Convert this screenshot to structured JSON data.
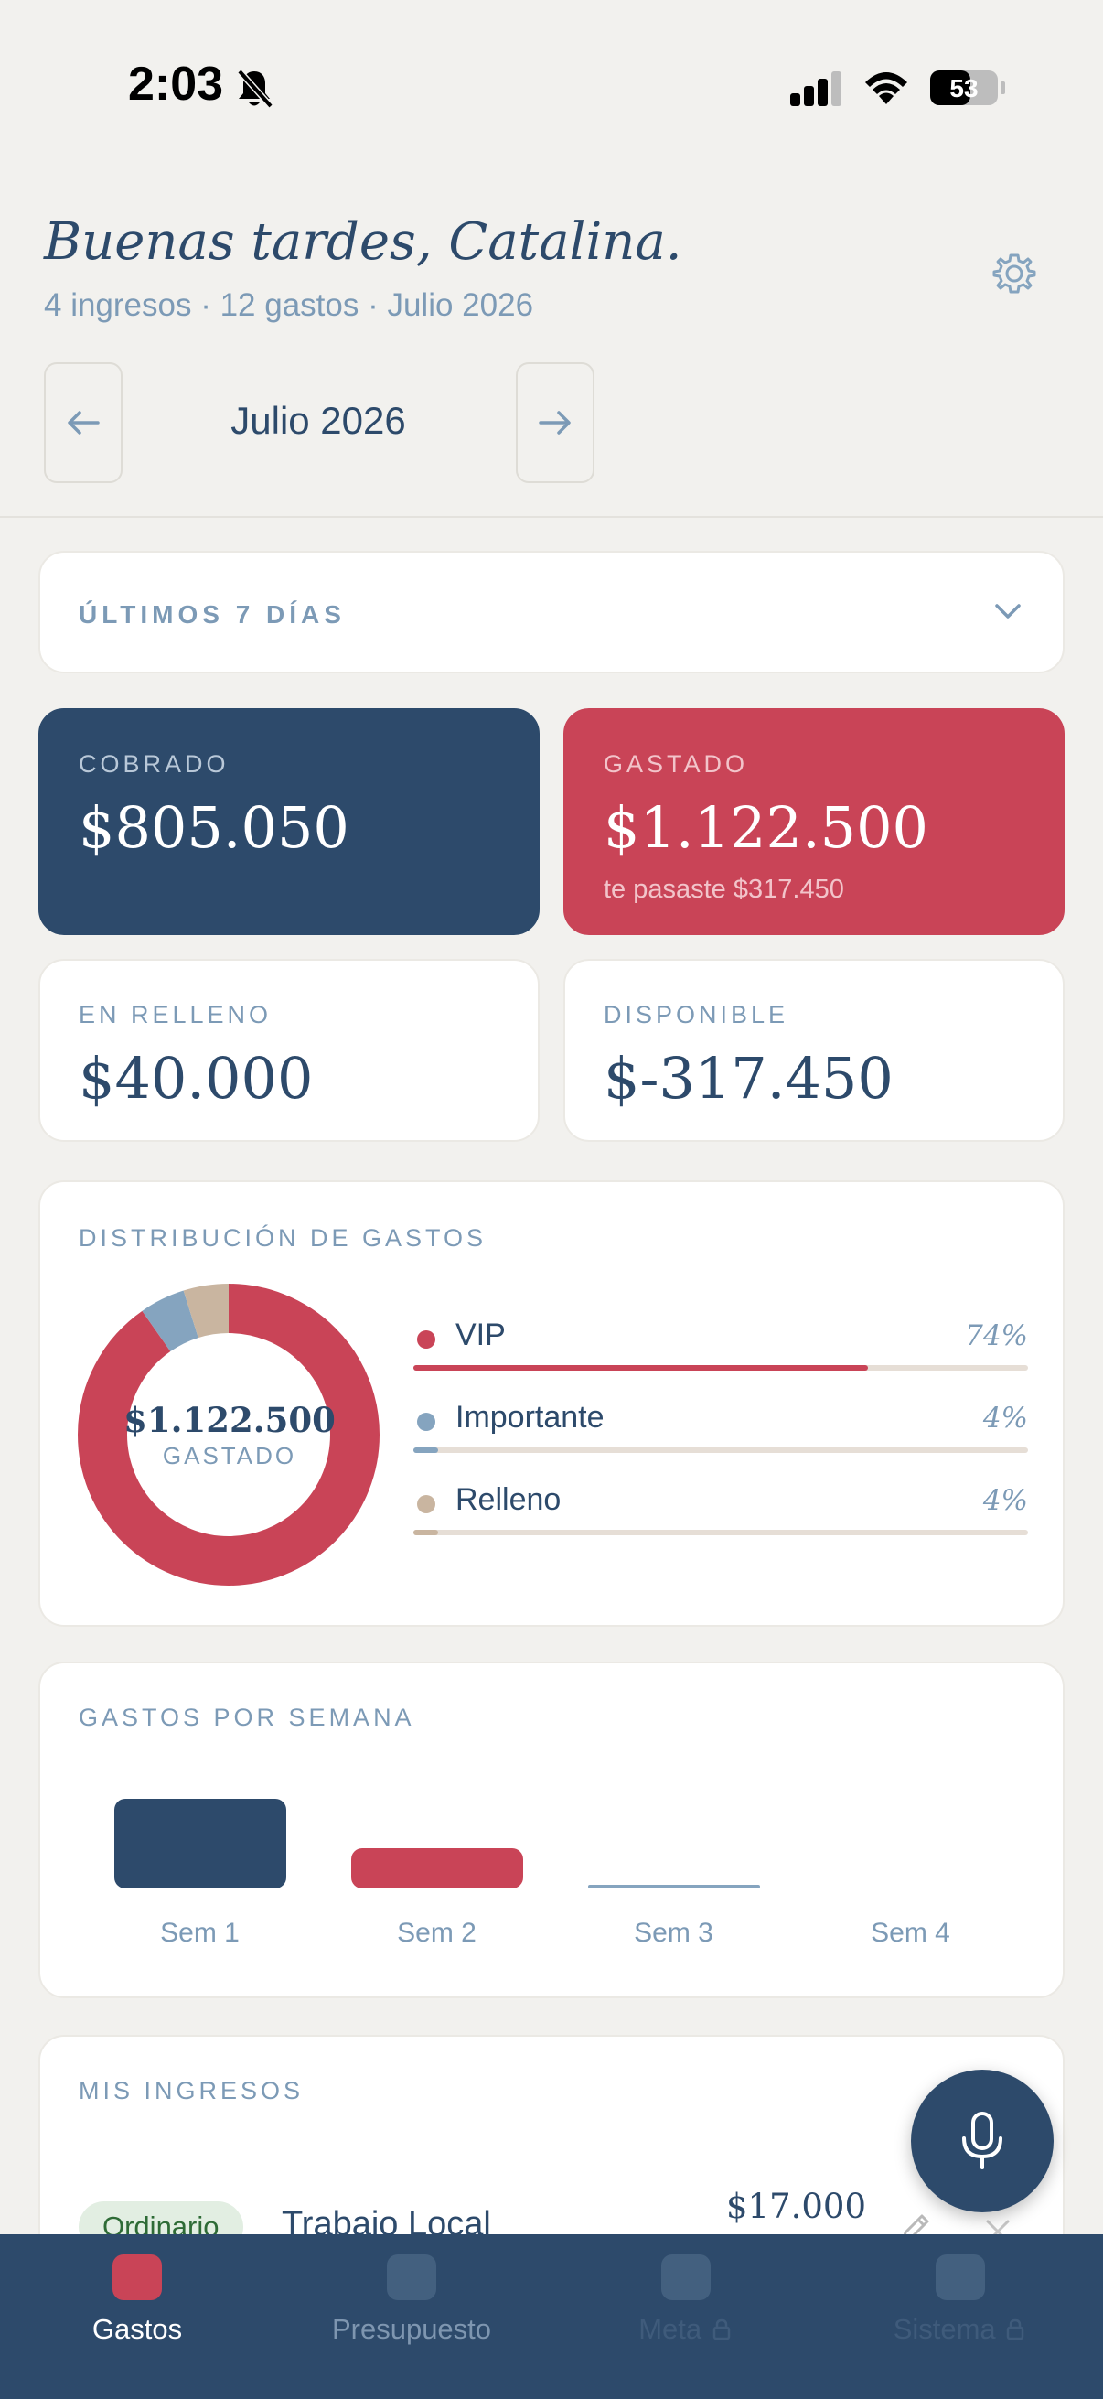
{
  "status": {
    "time": "2:03",
    "battery": "53"
  },
  "header": {
    "greeting": "Buenas tardes, Catalina.",
    "summary": "4 ingresos · 12 gastos · Julio 2026",
    "month": "Julio 2026"
  },
  "period": {
    "label": "ÚLTIMOS 7 DÍAS"
  },
  "stats": {
    "cobrado": {
      "label": "COBRADO",
      "amount": "$805.050"
    },
    "gastado": {
      "label": "GASTADO",
      "amount": "$1.122.500",
      "note": "te pasaste $317.450"
    },
    "relleno": {
      "label": "EN RELLENO",
      "amount": "$40.000"
    },
    "disponible": {
      "label": "DISPONIBLE",
      "amount": "$-317.450"
    }
  },
  "distribution": {
    "title": "DISTRIBUCIÓN DE GASTOS",
    "total": "$1.122.500",
    "total_label": "GASTADO",
    "items": [
      {
        "name": "VIP",
        "pct": "74%",
        "value": 0.74,
        "color": "#c94457"
      },
      {
        "name": "Importante",
        "pct": "4%",
        "value": 0.04,
        "color": "#85a4bf"
      },
      {
        "name": "Relleno",
        "pct": "4%",
        "value": 0.04,
        "color": "#c9b5a0"
      }
    ]
  },
  "chart_data": {
    "type": "bar",
    "title": "GASTOS POR SEMANA",
    "categories": [
      "Sem 1",
      "Sem 2",
      "Sem 3",
      "Sem 4"
    ],
    "values": [
      100,
      45,
      3,
      0
    ],
    "colors": [
      "#2d4a6b",
      "#c94457",
      "#85a4bf",
      "#85a4bf"
    ],
    "grid": false,
    "legend": "none"
  },
  "ingresos": {
    "title": "MIS INGRESOS",
    "items": [
      {
        "tag": "Ordinario",
        "name": "Trabajo Local",
        "amount": "$17.000"
      }
    ]
  },
  "tabs": [
    {
      "label": "Gastos",
      "active": true
    },
    {
      "label": "Presupuesto",
      "active": false
    },
    {
      "label": "Meta",
      "active": false,
      "locked": true
    },
    {
      "label": "Sistema",
      "active": false,
      "locked": true
    }
  ],
  "colors": {
    "navy": "#2d4a6b",
    "red": "#c94457",
    "muted": "#7c9ab6",
    "background": "#f2f1ee"
  }
}
